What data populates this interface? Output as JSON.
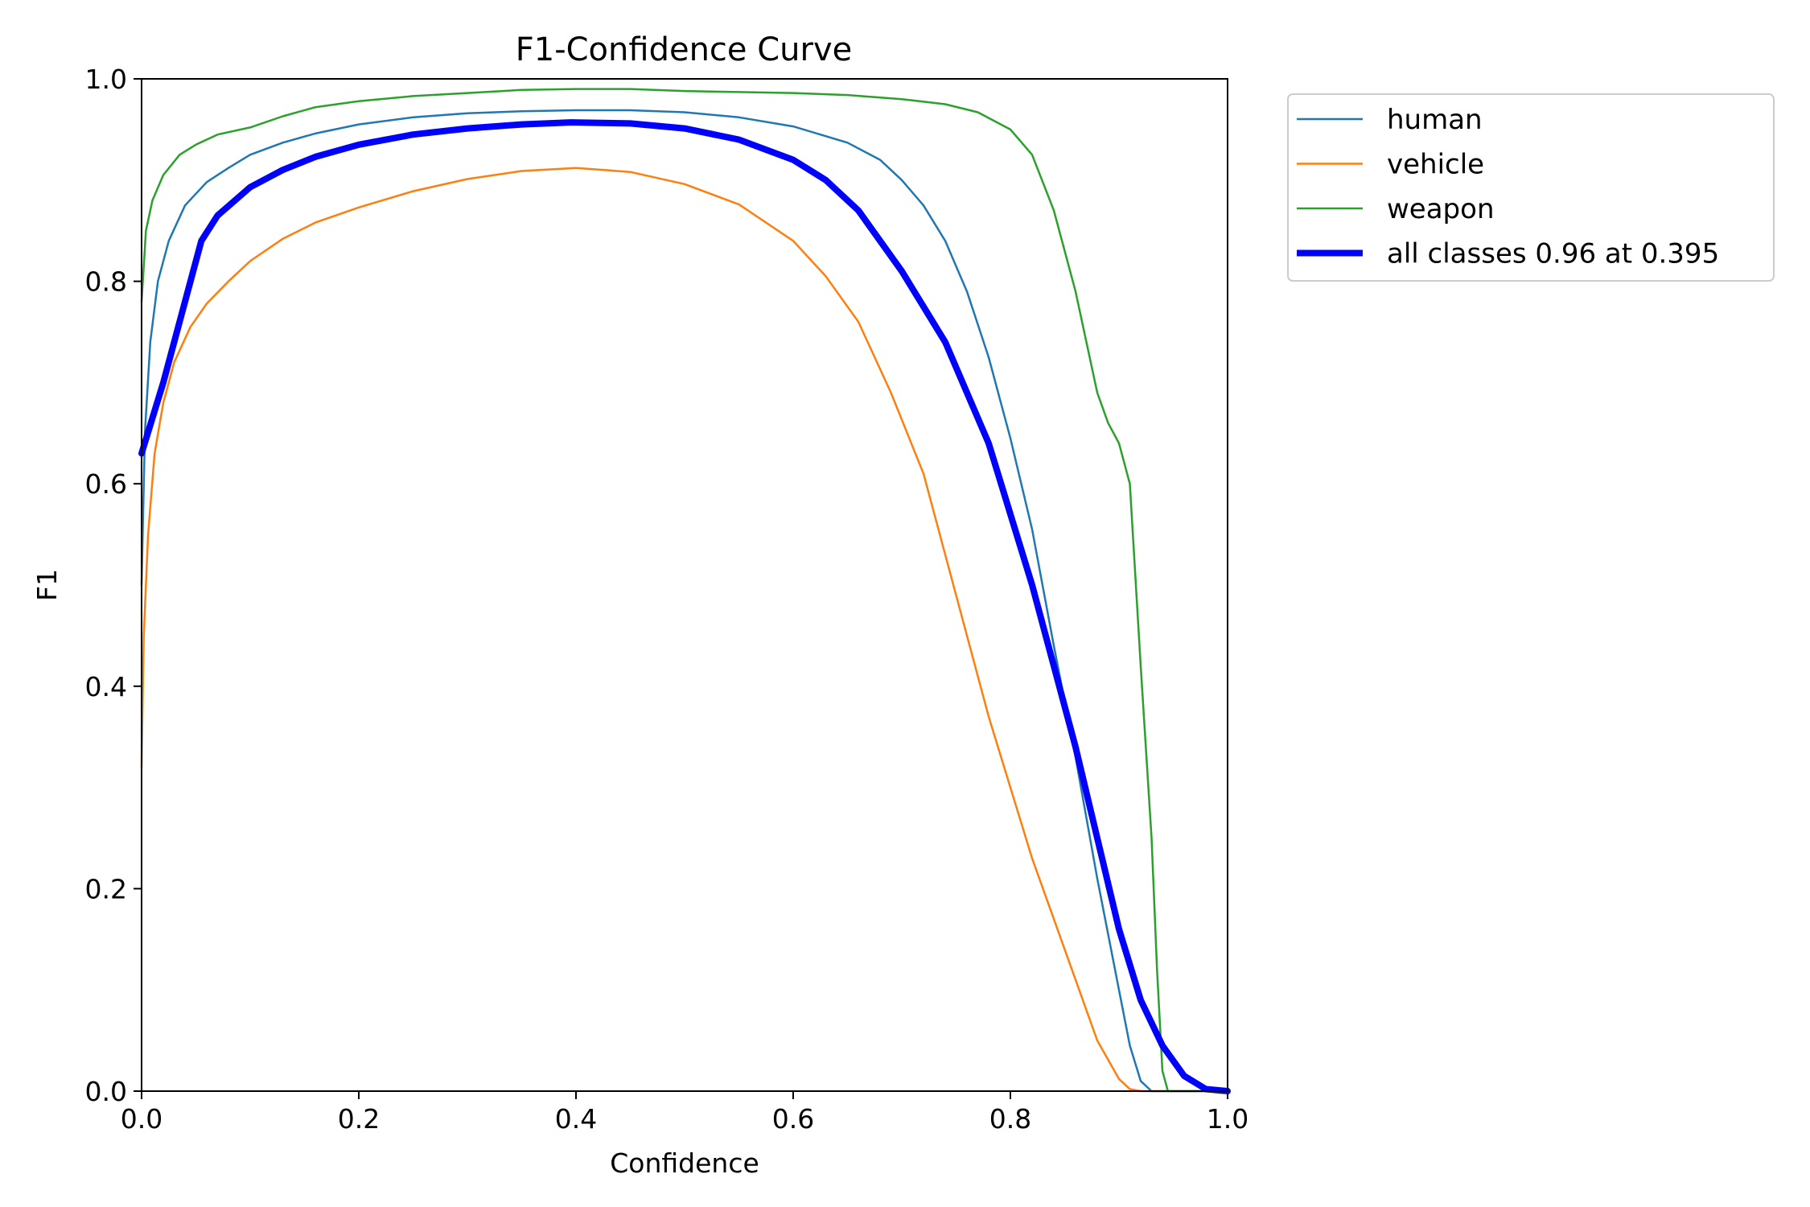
{
  "chart_data": {
    "type": "line",
    "title": "F1-Confidence Curve",
    "xlabel": "Confidence",
    "ylabel": "F1",
    "xlim": [
      0.0,
      1.0
    ],
    "ylim": [
      0.0,
      1.0
    ],
    "xticks": [
      "0.0",
      "0.2",
      "0.4",
      "0.6",
      "0.8",
      "1.0"
    ],
    "yticks": [
      "0.0",
      "0.2",
      "0.4",
      "0.6",
      "0.8",
      "1.0"
    ],
    "grid": false,
    "legend_position": "outside-top-right",
    "series": [
      {
        "name": "human",
        "color": "#1f77b4",
        "points": [
          [
            0.0,
            0.5
          ],
          [
            0.003,
            0.65
          ],
          [
            0.008,
            0.74
          ],
          [
            0.015,
            0.8
          ],
          [
            0.025,
            0.84
          ],
          [
            0.04,
            0.875
          ],
          [
            0.06,
            0.898
          ],
          [
            0.08,
            0.912
          ],
          [
            0.1,
            0.925
          ],
          [
            0.13,
            0.937
          ],
          [
            0.16,
            0.946
          ],
          [
            0.2,
            0.955
          ],
          [
            0.25,
            0.962
          ],
          [
            0.3,
            0.966
          ],
          [
            0.35,
            0.968
          ],
          [
            0.4,
            0.969
          ],
          [
            0.45,
            0.969
          ],
          [
            0.5,
            0.967
          ],
          [
            0.55,
            0.962
          ],
          [
            0.6,
            0.953
          ],
          [
            0.65,
            0.937
          ],
          [
            0.68,
            0.92
          ],
          [
            0.7,
            0.9
          ],
          [
            0.72,
            0.875
          ],
          [
            0.74,
            0.84
          ],
          [
            0.76,
            0.79
          ],
          [
            0.78,
            0.725
          ],
          [
            0.8,
            0.645
          ],
          [
            0.82,
            0.555
          ],
          [
            0.84,
            0.44
          ],
          [
            0.86,
            0.33
          ],
          [
            0.88,
            0.21
          ],
          [
            0.9,
            0.1
          ],
          [
            0.91,
            0.045
          ],
          [
            0.92,
            0.01
          ],
          [
            0.93,
            0.0
          ],
          [
            1.0,
            0.0
          ]
        ]
      },
      {
        "name": "vehicle",
        "color": "#ff7f0e",
        "points": [
          [
            0.0,
            0.32
          ],
          [
            0.002,
            0.45
          ],
          [
            0.006,
            0.55
          ],
          [
            0.012,
            0.63
          ],
          [
            0.02,
            0.68
          ],
          [
            0.03,
            0.72
          ],
          [
            0.045,
            0.755
          ],
          [
            0.06,
            0.778
          ],
          [
            0.08,
            0.8
          ],
          [
            0.1,
            0.82
          ],
          [
            0.13,
            0.842
          ],
          [
            0.16,
            0.858
          ],
          [
            0.2,
            0.873
          ],
          [
            0.25,
            0.889
          ],
          [
            0.3,
            0.901
          ],
          [
            0.35,
            0.909
          ],
          [
            0.4,
            0.912
          ],
          [
            0.45,
            0.908
          ],
          [
            0.5,
            0.896
          ],
          [
            0.55,
            0.876
          ],
          [
            0.6,
            0.84
          ],
          [
            0.63,
            0.805
          ],
          [
            0.66,
            0.76
          ],
          [
            0.69,
            0.69
          ],
          [
            0.72,
            0.61
          ],
          [
            0.74,
            0.53
          ],
          [
            0.76,
            0.45
          ],
          [
            0.78,
            0.37
          ],
          [
            0.8,
            0.3
          ],
          [
            0.82,
            0.23
          ],
          [
            0.84,
            0.17
          ],
          [
            0.86,
            0.11
          ],
          [
            0.88,
            0.05
          ],
          [
            0.9,
            0.012
          ],
          [
            0.91,
            0.002
          ],
          [
            0.92,
            0.0
          ],
          [
            1.0,
            0.0
          ]
        ]
      },
      {
        "name": "weapon",
        "color": "#2ca02c",
        "points": [
          [
            0.0,
            0.78
          ],
          [
            0.004,
            0.85
          ],
          [
            0.01,
            0.88
          ],
          [
            0.02,
            0.905
          ],
          [
            0.035,
            0.925
          ],
          [
            0.05,
            0.935
          ],
          [
            0.07,
            0.945
          ],
          [
            0.1,
            0.952
          ],
          [
            0.13,
            0.963
          ],
          [
            0.16,
            0.972
          ],
          [
            0.2,
            0.978
          ],
          [
            0.25,
            0.983
          ],
          [
            0.3,
            0.986
          ],
          [
            0.35,
            0.989
          ],
          [
            0.4,
            0.99
          ],
          [
            0.45,
            0.99
          ],
          [
            0.5,
            0.988
          ],
          [
            0.55,
            0.987
          ],
          [
            0.6,
            0.986
          ],
          [
            0.65,
            0.984
          ],
          [
            0.7,
            0.98
          ],
          [
            0.74,
            0.975
          ],
          [
            0.77,
            0.967
          ],
          [
            0.8,
            0.95
          ],
          [
            0.82,
            0.925
          ],
          [
            0.84,
            0.87
          ],
          [
            0.86,
            0.79
          ],
          [
            0.87,
            0.74
          ],
          [
            0.88,
            0.69
          ],
          [
            0.89,
            0.66
          ],
          [
            0.9,
            0.64
          ],
          [
            0.91,
            0.6
          ],
          [
            0.92,
            0.42
          ],
          [
            0.93,
            0.25
          ],
          [
            0.935,
            0.12
          ],
          [
            0.94,
            0.02
          ],
          [
            0.945,
            0.0
          ],
          [
            1.0,
            0.0
          ]
        ]
      },
      {
        "name": "all classes 0.96 at 0.395",
        "color": "#0000ff",
        "thick": true,
        "points": [
          [
            0.0,
            0.63
          ],
          [
            0.02,
            0.7
          ],
          [
            0.04,
            0.78
          ],
          [
            0.055,
            0.84
          ],
          [
            0.07,
            0.865
          ],
          [
            0.1,
            0.893
          ],
          [
            0.13,
            0.91
          ],
          [
            0.16,
            0.923
          ],
          [
            0.2,
            0.935
          ],
          [
            0.25,
            0.945
          ],
          [
            0.3,
            0.951
          ],
          [
            0.35,
            0.955
          ],
          [
            0.395,
            0.957
          ],
          [
            0.45,
            0.956
          ],
          [
            0.5,
            0.951
          ],
          [
            0.55,
            0.94
          ],
          [
            0.6,
            0.92
          ],
          [
            0.63,
            0.9
          ],
          [
            0.66,
            0.87
          ],
          [
            0.7,
            0.81
          ],
          [
            0.74,
            0.74
          ],
          [
            0.78,
            0.64
          ],
          [
            0.8,
            0.57
          ],
          [
            0.82,
            0.5
          ],
          [
            0.84,
            0.42
          ],
          [
            0.86,
            0.34
          ],
          [
            0.88,
            0.25
          ],
          [
            0.9,
            0.16
          ],
          [
            0.92,
            0.09
          ],
          [
            0.94,
            0.045
          ],
          [
            0.96,
            0.015
          ],
          [
            0.98,
            0.002
          ],
          [
            1.0,
            0.0
          ]
        ]
      }
    ]
  }
}
